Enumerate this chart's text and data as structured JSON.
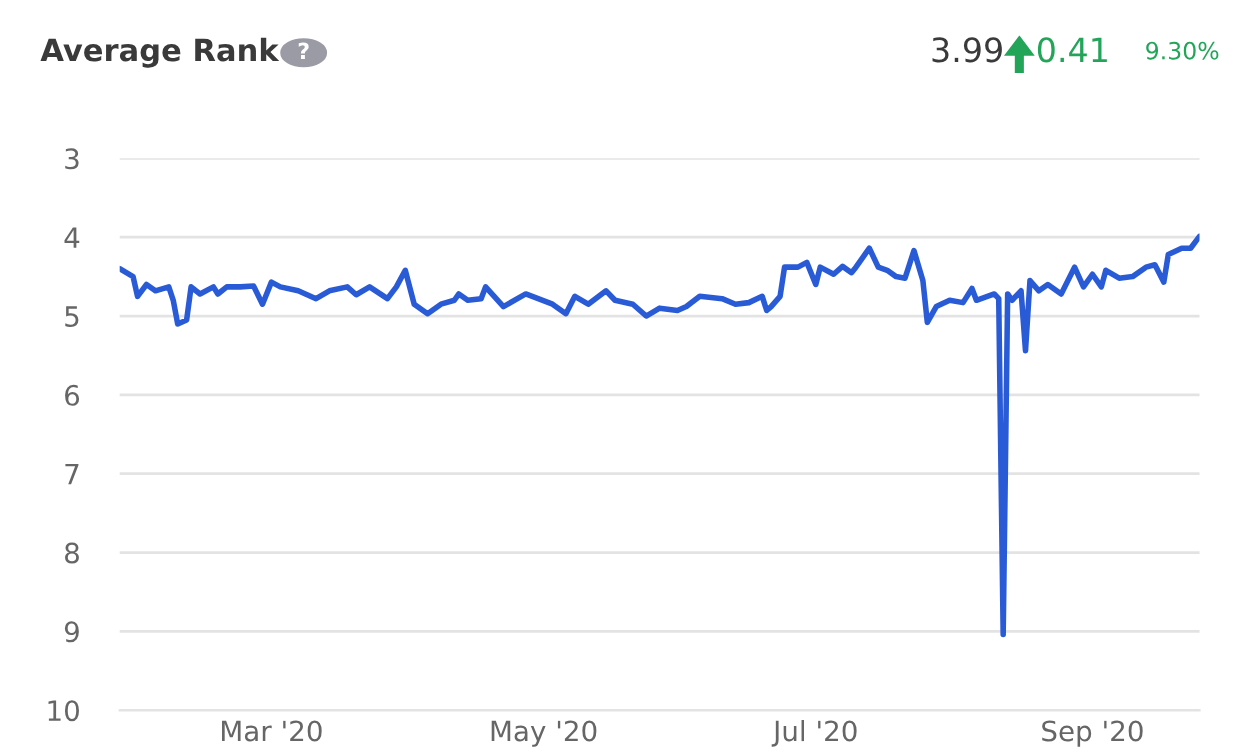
{
  "chart_data": {
    "type": "line",
    "title": "Average Rank",
    "annotations": [
      "?",
      "3.99",
      "0.41",
      "9.30%"
    ],
    "x": [
      "2020-01-27",
      "2020-01-30",
      "2020-01-31",
      "2020-02-02",
      "2020-02-04",
      "2020-02-07",
      "2020-02-08",
      "2020-02-09",
      "2020-02-11",
      "2020-02-12",
      "2020-02-14",
      "2020-02-17",
      "2020-02-18",
      "2020-02-20",
      "2020-02-23",
      "2020-02-26",
      "2020-02-28",
      "2020-03-01",
      "2020-03-03",
      "2020-03-07",
      "2020-03-11",
      "2020-03-14",
      "2020-03-18",
      "2020-03-20",
      "2020-03-23",
      "2020-03-27",
      "2020-03-29",
      "2020-03-31",
      "2020-04-02",
      "2020-04-05",
      "2020-04-08",
      "2020-04-11",
      "2020-04-12",
      "2020-04-14",
      "2020-04-17",
      "2020-04-18",
      "2020-04-22",
      "2020-04-27",
      "2020-05-03",
      "2020-05-06",
      "2020-05-08",
      "2020-05-11",
      "2020-05-15",
      "2020-05-17",
      "2020-05-21",
      "2020-05-24",
      "2020-05-27",
      "2020-05-31",
      "2020-06-02",
      "2020-06-05",
      "2020-06-10",
      "2020-06-13",
      "2020-06-16",
      "2020-06-19",
      "2020-06-20",
      "2020-06-21",
      "2020-06-23",
      "2020-06-24",
      "2020-06-27",
      "2020-06-29",
      "2020-07-01",
      "2020-07-02",
      "2020-07-05",
      "2020-07-07",
      "2020-07-09",
      "2020-07-10",
      "2020-07-13",
      "2020-07-15",
      "2020-07-17",
      "2020-07-19",
      "2020-07-21",
      "2020-07-23",
      "2020-07-25",
      "2020-07-26",
      "2020-07-28",
      "2020-07-31",
      "2020-08-03",
      "2020-08-05",
      "2020-08-06",
      "2020-08-10",
      "2020-08-11",
      "2020-08-12",
      "2020-08-13",
      "2020-08-14",
      "2020-08-16",
      "2020-08-17",
      "2020-08-18",
      "2020-08-20",
      "2020-08-22",
      "2020-08-25",
      "2020-08-28",
      "2020-08-30",
      "2020-09-01",
      "2020-09-03",
      "2020-09-04",
      "2020-09-07",
      "2020-09-10",
      "2020-09-13",
      "2020-09-15",
      "2020-09-17",
      "2020-09-18",
      "2020-09-21",
      "2020-09-23",
      "2020-09-25"
    ],
    "series": [
      {
        "color": "#2a5bd7",
        "values": [
          4.4,
          4.5,
          4.75,
          4.6,
          4.68,
          4.63,
          4.8,
          5.1,
          5.05,
          4.63,
          4.72,
          4.63,
          4.72,
          4.63,
          4.63,
          4.62,
          4.85,
          4.57,
          4.63,
          4.68,
          4.78,
          4.68,
          4.63,
          4.73,
          4.63,
          4.78,
          4.63,
          4.42,
          4.85,
          4.97,
          4.85,
          4.8,
          4.72,
          4.8,
          4.78,
          4.63,
          4.88,
          4.72,
          4.85,
          4.97,
          4.75,
          4.85,
          4.68,
          4.8,
          4.85,
          5.0,
          4.9,
          4.93,
          4.88,
          4.75,
          4.78,
          4.85,
          4.83,
          4.75,
          4.93,
          4.88,
          4.75,
          4.38,
          4.38,
          4.32,
          4.6,
          4.38,
          4.47,
          4.37,
          4.45,
          4.38,
          4.14,
          4.38,
          4.42,
          4.5,
          4.52,
          4.17,
          4.55,
          5.08,
          4.88,
          4.8,
          4.83,
          4.65,
          4.8,
          4.72,
          4.78,
          9.04,
          4.72,
          4.8,
          4.68,
          5.44,
          4.55,
          4.68,
          4.6,
          4.72,
          4.38,
          4.63,
          4.47,
          4.63,
          4.42,
          4.52,
          4.5,
          4.38,
          4.35,
          4.57,
          4.22,
          4.14,
          4.14,
          3.99
        ]
      }
    ],
    "xlim": [
      "2020-01-27",
      "2020-09-25"
    ],
    "xticks": [
      {
        "value": "2020-03-01",
        "label": "Mar '20"
      },
      {
        "value": "2020-05-01",
        "label": "May '20"
      },
      {
        "value": "2020-07-01",
        "label": "Jul '20"
      },
      {
        "value": "2020-09-01",
        "label": "Sep '20"
      }
    ],
    "ylim": [
      10,
      3
    ],
    "yticks": [
      3,
      4,
      5,
      6,
      7,
      8,
      9,
      10
    ],
    "grid": "y",
    "legend": false,
    "marker": "none",
    "line_style": "solid"
  }
}
